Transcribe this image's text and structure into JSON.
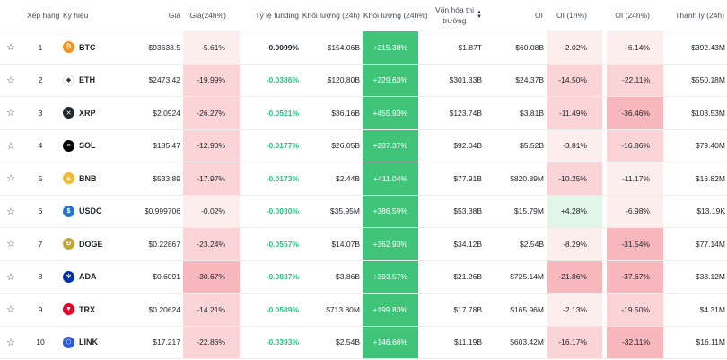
{
  "headers": {
    "rank": "Xếp hạng",
    "symbol": "Ký hiệu",
    "price": "Giá",
    "price_change": "Giá(24h%)",
    "funding": "Tỷ lệ funding",
    "volume": "Khối lượng (24h)",
    "volume_change": "Khối lượng (24h%)",
    "mcap_line1": "Vốn hóa thị",
    "mcap_line2": "trường",
    "oi": "OI",
    "oi_1h": "OI (1h%)",
    "oi_24h": "OI (24h%)",
    "liq": "Thanh lý (24h)"
  },
  "colors": {
    "red_light": "#fdeeee",
    "red_mid": "#fad4d6",
    "red_strong": "#f6b8bc",
    "green_strong": "#3fc47a",
    "green_light": "#e2f5e9"
  },
  "rows": [
    {
      "rank": "1",
      "symbol": "BTC",
      "icon": "bitcoin-icon",
      "icon_color": "#f7931a",
      "icon_glyph": "₿",
      "price": "$93633.5",
      "price_change": "-5.61%",
      "funding": "0.0099%",
      "funding_sign": "pos",
      "volume": "$154.06B",
      "volume_change": "+215.38%",
      "mcap": "$1.87T",
      "oi": "$60.08B",
      "oi_1h": "-2.02%",
      "oi_24h": "-6.14%",
      "liq": "$392.43M",
      "pc_level": "light",
      "oi1_level": "light",
      "oi24_level": "light"
    },
    {
      "rank": "2",
      "symbol": "ETH",
      "icon": "ethereum-icon",
      "icon_color": "#ffffff",
      "icon_glyph": "◆",
      "price": "$2473.42",
      "price_change": "-19.99%",
      "funding": "-0.0386%",
      "funding_sign": "neg",
      "volume": "$120.80B",
      "volume_change": "+229.63%",
      "mcap": "$301.33B",
      "oi": "$24.37B",
      "oi_1h": "-14.50%",
      "oi_24h": "-22.11%",
      "liq": "$550.18M",
      "pc_level": "mid",
      "oi1_level": "mid",
      "oi24_level": "mid"
    },
    {
      "rank": "3",
      "symbol": "XRP",
      "icon": "xrp-icon",
      "icon_color": "#23292f",
      "icon_glyph": "✕",
      "price": "$2.0924",
      "price_change": "-26.27%",
      "funding": "-0.0521%",
      "funding_sign": "neg",
      "volume": "$36.16B",
      "volume_change": "+455.93%",
      "mcap": "$123.74B",
      "oi": "$3.81B",
      "oi_1h": "-11.49%",
      "oi_24h": "-36.46%",
      "liq": "$103.53M",
      "pc_level": "mid",
      "oi1_level": "mid",
      "oi24_level": "strong"
    },
    {
      "rank": "4",
      "symbol": "SOL",
      "icon": "solana-icon",
      "icon_color": "#000000",
      "icon_glyph": "≡",
      "price": "$185.47",
      "price_change": "-12.90%",
      "funding": "-0.0177%",
      "funding_sign": "neg",
      "volume": "$26.05B",
      "volume_change": "+207.37%",
      "mcap": "$92.04B",
      "oi": "$5.52B",
      "oi_1h": "-3.81%",
      "oi_24h": "-16.86%",
      "liq": "$79.40M",
      "pc_level": "mid",
      "oi1_level": "light",
      "oi24_level": "mid"
    },
    {
      "rank": "5",
      "symbol": "BNB",
      "icon": "bnb-icon",
      "icon_color": "#f3ba2f",
      "icon_glyph": "◈",
      "price": "$533.89",
      "price_change": "-17.97%",
      "funding": "-0.0173%",
      "funding_sign": "neg",
      "volume": "$2.44B",
      "volume_change": "+411.04%",
      "mcap": "$77.91B",
      "oi": "$820.89M",
      "oi_1h": "-10.25%",
      "oi_24h": "-11.17%",
      "liq": "$16.82M",
      "pc_level": "mid",
      "oi1_level": "mid",
      "oi24_level": "light"
    },
    {
      "rank": "6",
      "symbol": "USDC",
      "icon": "usdc-icon",
      "icon_color": "#2775ca",
      "icon_glyph": "$",
      "price": "$0.999706",
      "price_change": "-0.02%",
      "funding": "-0.0030%",
      "funding_sign": "neg",
      "volume": "$35.95M",
      "volume_change": "+386.59%",
      "mcap": "$53.38B",
      "oi": "$15.79M",
      "oi_1h": "+4.28%",
      "oi_24h": "-6.98%",
      "liq": "$13.19K",
      "pc_level": "light",
      "oi1_level": "green",
      "oi24_level": "light"
    },
    {
      "rank": "7",
      "symbol": "DOGE",
      "icon": "doge-icon",
      "icon_color": "#c2a633",
      "icon_glyph": "Ð",
      "price": "$0.22867",
      "price_change": "-23.24%",
      "funding": "-0.0557%",
      "funding_sign": "neg",
      "volume": "$14.07B",
      "volume_change": "+362.93%",
      "mcap": "$34.12B",
      "oi": "$2.54B",
      "oi_1h": "-8.29%",
      "oi_24h": "-31.54%",
      "liq": "$77.14M",
      "pc_level": "mid",
      "oi1_level": "light",
      "oi24_level": "strong"
    },
    {
      "rank": "8",
      "symbol": "ADA",
      "icon": "cardano-icon",
      "icon_color": "#0033ad",
      "icon_glyph": "✻",
      "price": "$0.6091",
      "price_change": "-30.67%",
      "funding": "-0.0837%",
      "funding_sign": "neg",
      "volume": "$3.86B",
      "volume_change": "+393.57%",
      "mcap": "$21.26B",
      "oi": "$725.14M",
      "oi_1h": "-21.86%",
      "oi_24h": "-37.67%",
      "liq": "$33.12M",
      "pc_level": "strong",
      "oi1_level": "strong",
      "oi24_level": "strong"
    },
    {
      "rank": "9",
      "symbol": "TRX",
      "icon": "tron-icon",
      "icon_color": "#eb0029",
      "icon_glyph": "▼",
      "price": "$0.20624",
      "price_change": "-14.21%",
      "funding": "-0.0589%",
      "funding_sign": "neg",
      "volume": "$713.80M",
      "volume_change": "+199.83%",
      "mcap": "$17.78B",
      "oi": "$165.96M",
      "oi_1h": "-2.13%",
      "oi_24h": "-19.50%",
      "liq": "$4.31M",
      "pc_level": "mid",
      "oi1_level": "light",
      "oi24_level": "mid"
    },
    {
      "rank": "10",
      "symbol": "LINK",
      "icon": "chainlink-icon",
      "icon_color": "#2a5ada",
      "icon_glyph": "⬡",
      "price": "$17.217",
      "price_change": "-22.86%",
      "funding": "-0.0393%",
      "funding_sign": "neg",
      "volume": "$2.54B",
      "volume_change": "+146.66%",
      "mcap": "$11.19B",
      "oi": "$603.42M",
      "oi_1h": "-16.17%",
      "oi_24h": "-32.11%",
      "liq": "$16.11M",
      "pc_level": "mid",
      "oi1_level": "mid",
      "oi24_level": "strong"
    }
  ]
}
